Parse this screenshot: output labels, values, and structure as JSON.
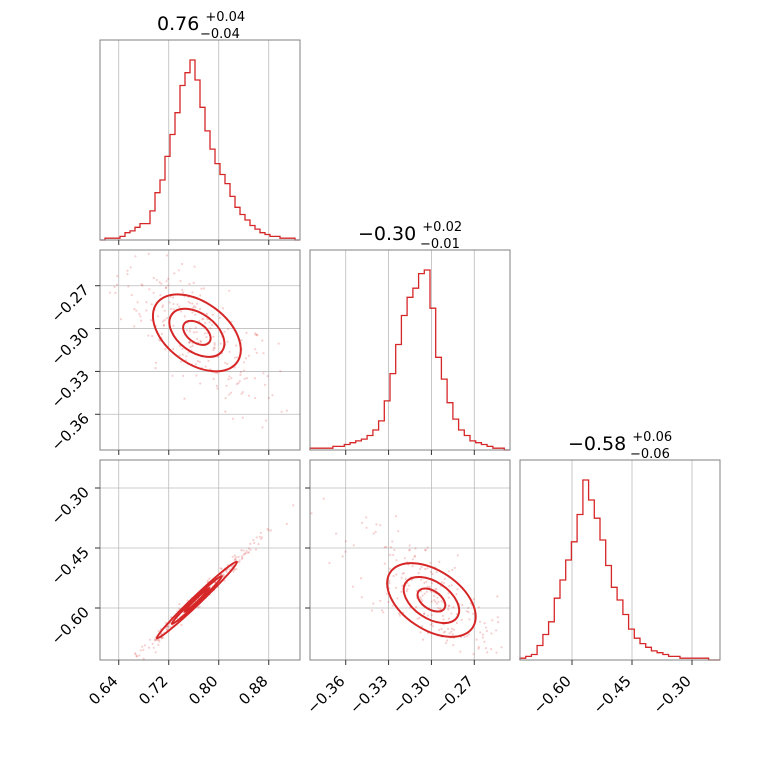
{
  "colors": {
    "accent": "#d62728",
    "frame": "#808080",
    "grid": "#bbbbbb"
  },
  "titles": [
    {
      "value": "0.76",
      "plus": "+0.04",
      "minus": "−0.04"
    },
    {
      "value": "−0.30",
      "plus": "+0.02",
      "minus": "−0.01"
    },
    {
      "value": "−0.58",
      "plus": "+0.06",
      "minus": "−0.06"
    }
  ],
  "chart_data": {
    "type": "corner",
    "parameters": 3,
    "ranges": [
      [
        0.61,
        0.93
      ],
      [
        -0.385,
        -0.245
      ],
      [
        -0.73,
        -0.23
      ]
    ],
    "ticks": [
      {
        "values": [
          0.64,
          0.72,
          0.8,
          0.88
        ],
        "labels": [
          "0.64",
          "0.72",
          "0.80",
          "0.88"
        ]
      },
      {
        "values": [
          -0.36,
          -0.33,
          -0.3,
          -0.27
        ],
        "labels": [
          "−0.36",
          "−0.33",
          "−0.30",
          "−0.27"
        ]
      },
      {
        "values": [
          -0.6,
          -0.45,
          -0.3
        ],
        "labels": [
          "−0.60",
          "−0.45",
          "−0.30"
        ]
      }
    ],
    "histograms": [
      {
        "x_start": 0.61,
        "x_end": 0.93,
        "counts": [
          0,
          1,
          1,
          1,
          2,
          4,
          5,
          7,
          9,
          9,
          16,
          26,
          33,
          46,
          58,
          70,
          85,
          92,
          99,
          88,
          73,
          60,
          50,
          42,
          36,
          31,
          24,
          18,
          14,
          11,
          8,
          6,
          4,
          3,
          2,
          2,
          1,
          1,
          1,
          0
        ]
      },
      {
        "x_start": -0.385,
        "x_end": -0.245,
        "counts": [
          1,
          1,
          1,
          1,
          2,
          2,
          3,
          4,
          5,
          6,
          8,
          11,
          16,
          27,
          42,
          58,
          74,
          84,
          89,
          97,
          99,
          78,
          51,
          39,
          26,
          17,
          11,
          8,
          5,
          4,
          3,
          2,
          1,
          1,
          0
        ]
      },
      {
        "x_start": -0.73,
        "x_end": -0.23,
        "counts": [
          1,
          2,
          3,
          8,
          14,
          21,
          34,
          44,
          55,
          65,
          80,
          99,
          88,
          78,
          66,
          52,
          40,
          33,
          25,
          17,
          12,
          9,
          7,
          5,
          4,
          3,
          2,
          2,
          1,
          1,
          1,
          1,
          1,
          0,
          0
        ]
      }
    ],
    "pairs": [
      {
        "x_param": 0,
        "y_param": 1,
        "center": [
          0.765,
          -0.303
        ],
        "correlation": -0.72
      },
      {
        "x_param": 0,
        "y_param": 2,
        "center": [
          0.765,
          -0.58
        ],
        "correlation": 0.995
      },
      {
        "x_param": 1,
        "y_param": 2,
        "center": [
          -0.3,
          -0.58
        ],
        "correlation": -0.72
      }
    ],
    "grid": true
  }
}
